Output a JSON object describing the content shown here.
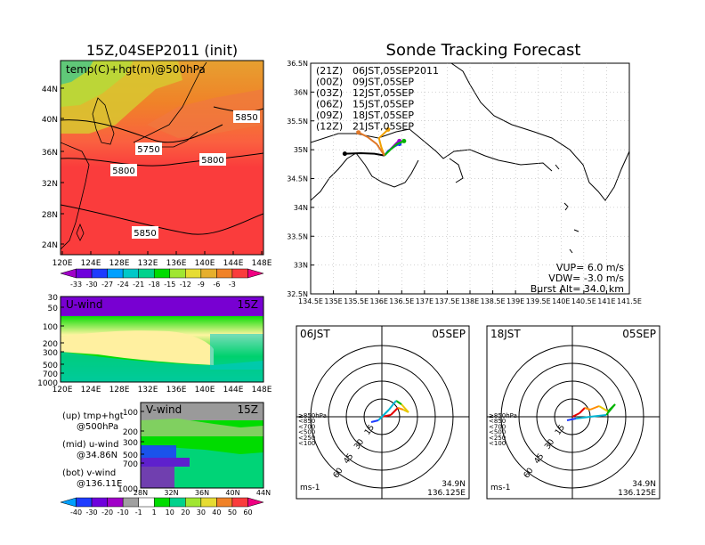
{
  "left": {
    "title": "15Z,04SEP2011 (init)",
    "map_label": "temp(C)+hgt(m)@500hPa",
    "lat_ticks": [
      "44N",
      "40N",
      "36N",
      "32N",
      "28N",
      "24N"
    ],
    "lon_ticks": [
      "120E",
      "124E",
      "128E",
      "132E",
      "136E",
      "140E",
      "144E",
      "148E"
    ],
    "contour_labels": [
      "5850",
      "5750",
      "5800",
      "5800",
      "5850"
    ],
    "temp_colorbar": {
      "labels": [
        "-33",
        "-30",
        "-27",
        "-24",
        "-21",
        "-18",
        "-15",
        "-12",
        "-9",
        "-6",
        "-3"
      ],
      "colors": [
        "#a000c8",
        "#6e00dc",
        "#1e3cff",
        "#00a0ff",
        "#00c8c8",
        "#00d28c",
        "#00dc00",
        "#a0e632",
        "#e6dc32",
        "#e6af2d",
        "#f08228",
        "#fa3c3c",
        "#f00082"
      ]
    },
    "uwind": {
      "label": "U-wind",
      "time": "15Z",
      "p_ticks": [
        "30",
        "50",
        "100",
        "200",
        "300",
        "500",
        "700",
        "1000"
      ],
      "lon_ticks": [
        "120E",
        "124E",
        "128E",
        "132E",
        "136E",
        "140E",
        "144E",
        "148E"
      ]
    },
    "vwind": {
      "label": "V-wind",
      "time": "15Z",
      "p_ticks": [
        "100",
        "200",
        "300",
        "500",
        "700",
        "1000"
      ],
      "lat_ticks": [
        "28N",
        "32N",
        "36N",
        "40N",
        "44N"
      ]
    },
    "notes": [
      {
        "a": "(up) tmp+hgt",
        "b": "@500hPa"
      },
      {
        "a": "(mid) u-wind",
        "b": "@34.86N"
      },
      {
        "a": "(bot) v-wind",
        "b": "@136.11E"
      }
    ],
    "wind_colorbar": {
      "labels": [
        "-40",
        "-30",
        "-20",
        "-10",
        "-1",
        "1",
        "10",
        "20",
        "30",
        "40",
        "50",
        "60"
      ],
      "colors": [
        "#00a0ff",
        "#1e3cff",
        "#6e00dc",
        "#a000c8",
        "#a0a0a0",
        "#ffffff",
        "#00dc00",
        "#00d28c",
        "#a0e632",
        "#e6dc32",
        "#f08228",
        "#fa3c3c",
        "#f00082"
      ]
    }
  },
  "right": {
    "title": "Sonde Tracking Forecast",
    "lat_ticks": [
      "36.5N",
      "36N",
      "35.5N",
      "35N",
      "34.5N",
      "34N",
      "33.5N",
      "33N",
      "32.5N"
    ],
    "lon_ticks": [
      "134.5E",
      "135E",
      "135.5E",
      "136E",
      "136.5E",
      "137E",
      "137.5E",
      "138E",
      "138.5E",
      "139E",
      "139.5E",
      "140E",
      "140.5E",
      "141E",
      "141.5E"
    ],
    "legend": [
      {
        "z": "(21Z)",
        "t": "06JST,05SEP2011",
        "color": "#000000"
      },
      {
        "z": "(00Z)",
        "t": "09JST,05SEP",
        "color": "#a000c8"
      },
      {
        "z": "(03Z)",
        "t": "12JST,05SEP",
        "color": "#1e3cff"
      },
      {
        "z": "(06Z)",
        "t": "15JST,05SEP",
        "color": "#00b400"
      },
      {
        "z": "(09Z)",
        "t": "18JST,05SEP",
        "color": "#f0a000"
      },
      {
        "z": "(12Z)",
        "t": "21JST,05SEP",
        "color": "#e07828"
      }
    ],
    "params": [
      "VUP=  6.0  m/s",
      "VDW=  -3.0  m/s",
      "Burst Alt=  34.0  km"
    ],
    "hodographs": [
      {
        "time": "06JST",
        "date": "05SEP"
      },
      {
        "time": "18JST",
        "date": "05SEP"
      }
    ],
    "hodo_ring_labels": [
      "15",
      "30",
      "45",
      "60"
    ],
    "hodo_legend": [
      {
        "text": "≥850hPa",
        "color": "#e60000"
      },
      {
        "text": "<850",
        "color": "#ff8c00"
      },
      {
        "text": "<700",
        "color": "#e6c800"
      },
      {
        "text": "<500",
        "color": "#00b400"
      },
      {
        "text": "<250",
        "color": "#00b4d2"
      },
      {
        "text": "<100",
        "color": "#1e3cff"
      }
    ],
    "hodo_unit": "ms-1",
    "hodo_location": {
      "lat": "34.9N",
      "lon": "136.125E"
    }
  },
  "chart_data": [
    {
      "type": "heatmap",
      "title": "15Z,04SEP2011 (init)",
      "label": "temp(C)+hgt(m)@500hPa",
      "x": [
        "120E",
        "124E",
        "128E",
        "132E",
        "136E",
        "140E",
        "144E",
        "148E"
      ],
      "y": [
        "24N",
        "28N",
        "32N",
        "36N",
        "40N",
        "44N"
      ],
      "colorbar": [
        "-33",
        "-30",
        "-27",
        "-24",
        "-21",
        "-18",
        "-15",
        "-12",
        "-9",
        "-6",
        "-3"
      ],
      "contour_labels": [
        "5850",
        "5750",
        "5800",
        "5800",
        "5850"
      ]
    },
    {
      "type": "line",
      "title": "Sonde Tracking Forecast",
      "xlim": [
        134.5,
        141.5
      ],
      "ylim": [
        32.5,
        36.5
      ],
      "series": [
        {
          "name": "(21Z) 06JST,05SEP2011",
          "color": "#000000",
          "x": [
            136.12,
            135.9,
            135.6,
            135.25
          ],
          "y": [
            34.9,
            34.93,
            34.94,
            34.93
          ]
        },
        {
          "name": "(00Z) 09JST,05SEP",
          "color": "#a000c8",
          "x": [
            136.12,
            136.3,
            136.4,
            136.45
          ],
          "y": [
            34.9,
            35.05,
            35.13,
            35.15
          ]
        },
        {
          "name": "(03Z) 12JST,05SEP",
          "color": "#1e3cff",
          "x": [
            136.12,
            136.2,
            136.35,
            136.45
          ],
          "y": [
            34.9,
            34.98,
            35.06,
            35.1
          ]
        },
        {
          "name": "(06Z) 15JST,05SEP",
          "color": "#00b400",
          "x": [
            136.12,
            136.25,
            136.4,
            136.55
          ],
          "y": [
            34.9,
            35.0,
            35.1,
            35.15
          ]
        },
        {
          "name": "(09Z) 18JST,05SEP",
          "color": "#f0a000",
          "x": [
            136.12,
            136.05,
            136.0,
            136.2
          ],
          "y": [
            34.9,
            35.05,
            35.2,
            35.35
          ]
        },
        {
          "name": "(12Z) 21JST,05SEP",
          "color": "#e07828",
          "x": [
            136.12,
            135.95,
            135.75,
            135.55
          ],
          "y": [
            34.9,
            35.1,
            35.22,
            35.3
          ]
        }
      ]
    }
  ]
}
